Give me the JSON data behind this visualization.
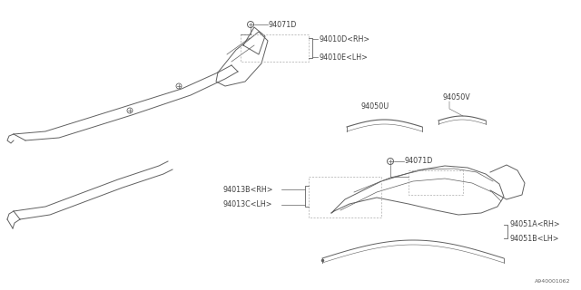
{
  "background_color": "#ffffff",
  "fig_width": 6.4,
  "fig_height": 3.2,
  "dpi": 100,
  "watermark": "A940001062",
  "parts": {
    "top_label_94071D": "94071D",
    "top_label_94010D": "94010D<RH>",
    "top_label_94010E": "94010E<LH>",
    "mid_right_label_94050V": "94050V",
    "mid_right_label_94050U": "94050U",
    "bot_label_94071D": "94071D",
    "bot_label_94013B": "94013B<RH>",
    "bot_label_94013C": "94013C<LH>",
    "bot_right_label_94051A": "94051A<RH>",
    "bot_right_label_94051B": "94051B<LH>"
  },
  "line_color": "#606060",
  "text_color": "#404040",
  "font_size": 5.8
}
